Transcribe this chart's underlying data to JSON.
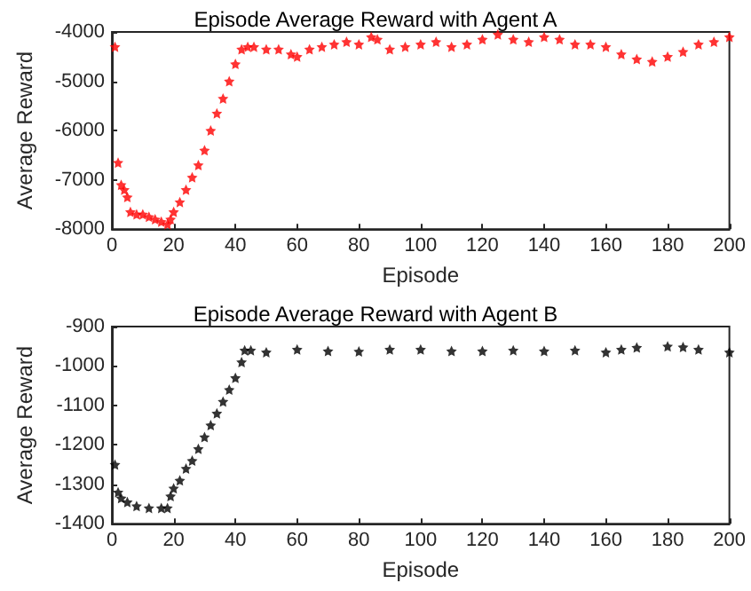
{
  "chart_data": [
    {
      "type": "scatter",
      "title": "Episode Average Reward with Agent A",
      "xlabel": "Episode",
      "ylabel": "Average Reward",
      "marker": "star",
      "grid": false,
      "color": "#ff0000",
      "x": [
        1,
        2,
        3,
        4,
        5,
        6,
        8,
        10,
        12,
        14,
        16,
        18,
        19,
        20,
        22,
        24,
        26,
        28,
        30,
        32,
        34,
        36,
        38,
        40,
        42,
        44,
        46,
        50,
        54,
        58,
        60,
        64,
        68,
        72,
        76,
        80,
        84,
        86,
        90,
        95,
        100,
        105,
        110,
        115,
        120,
        125,
        130,
        135,
        140,
        145,
        150,
        155,
        160,
        165,
        170,
        175,
        180,
        185,
        190,
        195,
        200
      ],
      "values": [
        -4300,
        -6650,
        -7100,
        -7200,
        -7350,
        -7650,
        -7700,
        -7700,
        -7750,
        -7800,
        -7850,
        -7900,
        -7800,
        -7650,
        -7450,
        -7200,
        -6950,
        -6700,
        -6400,
        -6000,
        -5650,
        -5350,
        -5000,
        -4650,
        -4350,
        -4300,
        -4300,
        -4350,
        -4350,
        -4450,
        -4500,
        -4350,
        -4300,
        -4250,
        -4200,
        -4250,
        -4100,
        -4150,
        -4350,
        -4300,
        -4250,
        -4200,
        -4300,
        -4250,
        -4150,
        -4050,
        -4150,
        -4200,
        -4100,
        -4150,
        -4250,
        -4250,
        -4300,
        -4450,
        -4550,
        -4600,
        -4500,
        -4400,
        -4250,
        -4200,
        -4100
      ],
      "xlim": [
        0,
        200
      ],
      "xticks": [
        0,
        20,
        40,
        60,
        80,
        100,
        120,
        140,
        160,
        180,
        200
      ],
      "ylim": [
        -8000,
        -4000
      ],
      "yticks": [
        -8000,
        -7000,
        -6000,
        -5000,
        -4000
      ]
    },
    {
      "type": "scatter",
      "title": "Episode Average Reward with Agent B",
      "xlabel": "Episode",
      "ylabel": "Average Reward",
      "marker": "star",
      "grid": false,
      "color": "#000000",
      "x": [
        1,
        2,
        3,
        5,
        8,
        12,
        16,
        18,
        19,
        20,
        22,
        24,
        26,
        28,
        30,
        32,
        34,
        36,
        38,
        40,
        42,
        43,
        45,
        50,
        60,
        70,
        80,
        90,
        100,
        110,
        120,
        130,
        140,
        150,
        160,
        165,
        170,
        180,
        185,
        190,
        200
      ],
      "values": [
        -1250,
        -1320,
        -1335,
        -1345,
        -1355,
        -1360,
        -1360,
        -1360,
        -1330,
        -1310,
        -1290,
        -1260,
        -1240,
        -1210,
        -1180,
        -1150,
        -1120,
        -1090,
        -1060,
        -1030,
        -990,
        -960,
        -960,
        -965,
        -958,
        -962,
        -963,
        -958,
        -958,
        -962,
        -962,
        -960,
        -962,
        -960,
        -965,
        -958,
        -953,
        -950,
        -952,
        -958,
        -965
      ],
      "xlim": [
        0,
        200
      ],
      "xticks": [
        0,
        20,
        40,
        60,
        80,
        100,
        120,
        140,
        160,
        180,
        200
      ],
      "ylim": [
        -1400,
        -900
      ],
      "yticks": [
        -1400,
        -1300,
        -1200,
        -1100,
        -1000,
        -900
      ]
    }
  ]
}
